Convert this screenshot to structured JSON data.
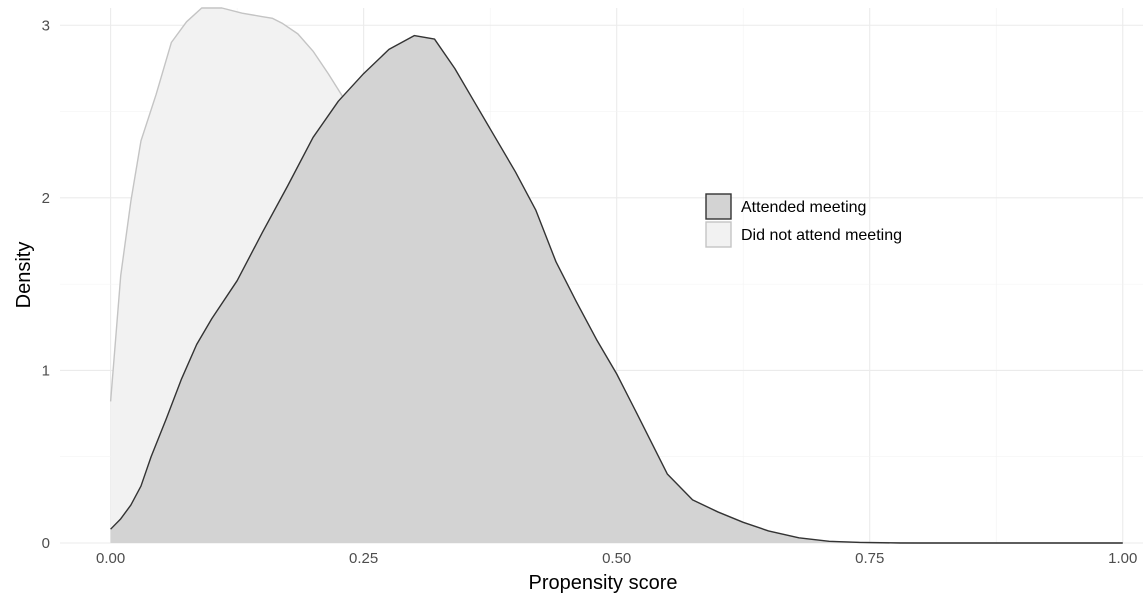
{
  "chart_data": {
    "type": "area",
    "xlabel": "Propensity score",
    "ylabel": "Density",
    "xlim": [
      -0.05,
      1.02
    ],
    "ylim": [
      0,
      3.1
    ],
    "x_ticks": [
      0.0,
      0.25,
      0.5,
      0.75,
      1.0
    ],
    "x_tick_labels": [
      "0.00",
      "0.25",
      "0.50",
      "0.75",
      "1.00"
    ],
    "y_ticks": [
      0,
      1,
      2,
      3
    ],
    "y_tick_labels": [
      "0",
      "1",
      "2",
      "3"
    ],
    "grid": true,
    "legend_position": "right",
    "series": [
      {
        "name": "Did not attend meeting",
        "fill": "#f2f2f2",
        "stroke": "#c4c4c4",
        "points": [
          [
            0.0,
            0.82
          ],
          [
            0.01,
            1.55
          ],
          [
            0.02,
            1.98
          ],
          [
            0.03,
            2.33
          ],
          [
            0.045,
            2.6
          ],
          [
            0.06,
            2.9
          ],
          [
            0.075,
            3.02
          ],
          [
            0.09,
            3.1
          ],
          [
            0.1,
            3.1
          ],
          [
            0.11,
            3.1
          ],
          [
            0.13,
            3.07
          ],
          [
            0.15,
            3.05
          ],
          [
            0.16,
            3.04
          ],
          [
            0.17,
            3.01
          ],
          [
            0.185,
            2.95
          ],
          [
            0.2,
            2.85
          ],
          [
            0.215,
            2.72
          ],
          [
            0.23,
            2.58
          ],
          [
            0.25,
            2.5
          ],
          [
            0.27,
            2.32
          ],
          [
            0.29,
            2.08
          ],
          [
            0.3,
            1.93
          ],
          [
            0.32,
            1.8
          ],
          [
            0.35,
            1.5
          ],
          [
            0.37,
            1.22
          ],
          [
            0.4,
            0.9
          ],
          [
            0.43,
            0.68
          ],
          [
            0.46,
            0.5
          ],
          [
            0.49,
            0.3
          ],
          [
            0.52,
            0.2
          ],
          [
            0.55,
            0.12
          ],
          [
            0.58,
            0.07
          ],
          [
            0.62,
            0.04
          ],
          [
            0.66,
            0.02
          ],
          [
            0.7,
            0.01
          ],
          [
            0.75,
            0.003
          ],
          [
            0.8,
            0.0
          ],
          [
            1.0,
            0.0
          ]
        ]
      },
      {
        "name": "Attended meeting",
        "fill": "#d3d3d3",
        "stroke": "#333333",
        "points": [
          [
            0.0,
            0.08
          ],
          [
            0.01,
            0.14
          ],
          [
            0.02,
            0.22
          ],
          [
            0.03,
            0.33
          ],
          [
            0.04,
            0.5
          ],
          [
            0.055,
            0.72
          ],
          [
            0.07,
            0.95
          ],
          [
            0.085,
            1.15
          ],
          [
            0.1,
            1.3
          ],
          [
            0.125,
            1.52
          ],
          [
            0.15,
            1.8
          ],
          [
            0.175,
            2.07
          ],
          [
            0.2,
            2.35
          ],
          [
            0.225,
            2.56
          ],
          [
            0.25,
            2.72
          ],
          [
            0.275,
            2.86
          ],
          [
            0.3,
            2.94
          ],
          [
            0.32,
            2.92
          ],
          [
            0.34,
            2.75
          ],
          [
            0.36,
            2.55
          ],
          [
            0.375,
            2.4
          ],
          [
            0.4,
            2.15
          ],
          [
            0.42,
            1.93
          ],
          [
            0.44,
            1.63
          ],
          [
            0.46,
            1.4
          ],
          [
            0.48,
            1.18
          ],
          [
            0.5,
            0.98
          ],
          [
            0.52,
            0.75
          ],
          [
            0.55,
            0.4
          ],
          [
            0.575,
            0.25
          ],
          [
            0.6,
            0.18
          ],
          [
            0.625,
            0.12
          ],
          [
            0.65,
            0.07
          ],
          [
            0.68,
            0.03
          ],
          [
            0.71,
            0.01
          ],
          [
            0.74,
            0.003
          ],
          [
            0.78,
            0.0
          ],
          [
            1.0,
            0.0
          ]
        ]
      }
    ]
  }
}
